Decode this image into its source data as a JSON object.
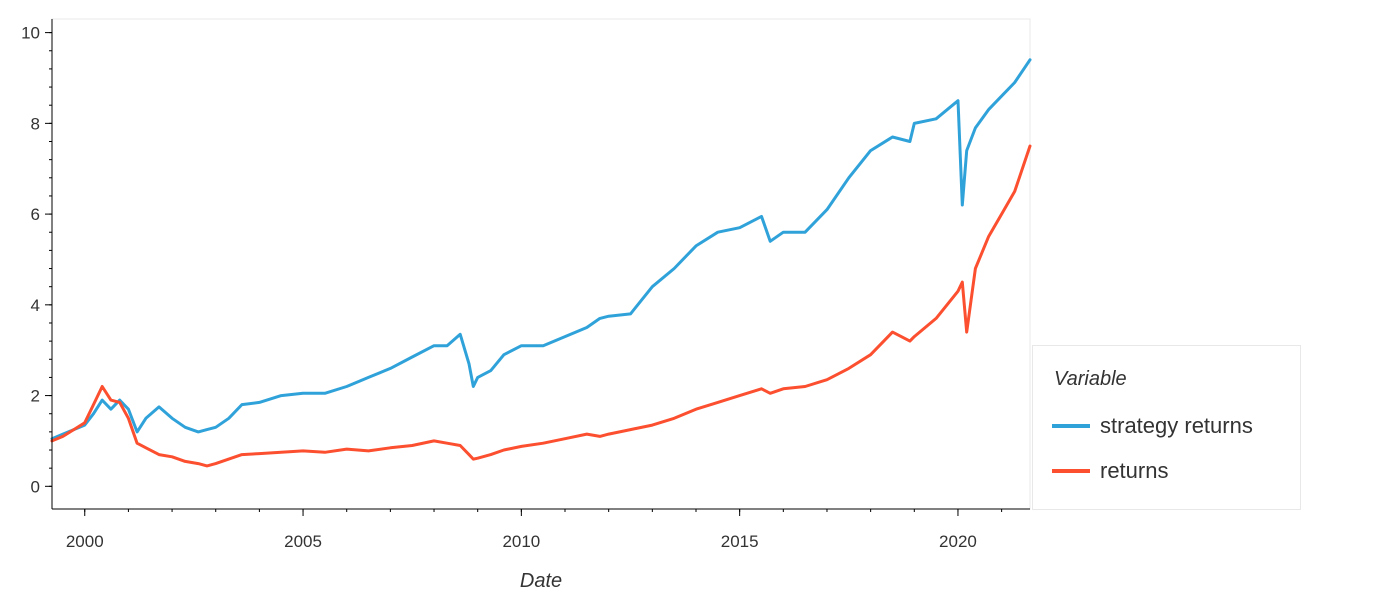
{
  "chart_data": {
    "type": "line",
    "title": "",
    "xlabel": "Date",
    "ylabel": "",
    "xlim": [
      1999.25,
      2021.65
    ],
    "ylim": [
      -0.5,
      10.3
    ],
    "x_ticks": [
      2000,
      2005,
      2010,
      2015,
      2020
    ],
    "y_ticks": [
      0,
      2,
      4,
      6,
      8,
      10
    ],
    "grid": false,
    "legend": {
      "title": "Variable",
      "placement": "right"
    },
    "x": [
      1999.25,
      1999.5,
      1999.75,
      2000.0,
      2000.2,
      2000.4,
      2000.6,
      2000.8,
      2001.0,
      2001.2,
      2001.4,
      2001.7,
      2002.0,
      2002.3,
      2002.6,
      2002.8,
      2003.0,
      2003.3,
      2003.6,
      2004.0,
      2004.5,
      2005.0,
      2005.5,
      2006.0,
      2006.5,
      2007.0,
      2007.5,
      2008.0,
      2008.3,
      2008.6,
      2008.8,
      2008.9,
      2009.0,
      2009.3,
      2009.6,
      2010.0,
      2010.5,
      2011.0,
      2011.5,
      2011.8,
      2012.0,
      2012.5,
      2013.0,
      2013.5,
      2014.0,
      2014.5,
      2015.0,
      2015.5,
      2015.7,
      2016.0,
      2016.5,
      2017.0,
      2017.5,
      2018.0,
      2018.5,
      2018.9,
      2019.0,
      2019.5,
      2020.0,
      2020.1,
      2020.2,
      2020.4,
      2020.7,
      2021.0,
      2021.3,
      2021.65
    ],
    "series": [
      {
        "name": "strategy returns",
        "color": "#30a2da",
        "values": [
          1.05,
          1.15,
          1.25,
          1.35,
          1.6,
          1.9,
          1.7,
          1.9,
          1.7,
          1.2,
          1.5,
          1.75,
          1.5,
          1.3,
          1.2,
          1.25,
          1.3,
          1.5,
          1.8,
          1.85,
          2.0,
          2.05,
          2.05,
          2.2,
          2.4,
          2.6,
          2.85,
          3.1,
          3.1,
          3.35,
          2.7,
          2.2,
          2.4,
          2.55,
          2.9,
          3.1,
          3.1,
          3.3,
          3.5,
          3.7,
          3.75,
          3.8,
          4.4,
          4.8,
          5.3,
          5.6,
          5.7,
          5.95,
          5.4,
          5.6,
          5.6,
          6.1,
          6.8,
          7.4,
          7.7,
          7.6,
          8.0,
          8.1,
          8.5,
          6.2,
          7.4,
          7.9,
          8.3,
          8.6,
          8.9,
          9.4
        ]
      },
      {
        "name": "returns",
        "color": "#fc4f30",
        "values": [
          1.0,
          1.1,
          1.25,
          1.4,
          1.8,
          2.2,
          1.9,
          1.85,
          1.5,
          0.95,
          0.85,
          0.7,
          0.65,
          0.55,
          0.5,
          0.45,
          0.5,
          0.6,
          0.7,
          0.72,
          0.75,
          0.78,
          0.75,
          0.82,
          0.78,
          0.85,
          0.9,
          1.0,
          0.95,
          0.9,
          0.7,
          0.6,
          0.62,
          0.7,
          0.8,
          0.88,
          0.95,
          1.05,
          1.15,
          1.1,
          1.15,
          1.25,
          1.35,
          1.5,
          1.7,
          1.85,
          2.0,
          2.15,
          2.05,
          2.15,
          2.2,
          2.35,
          2.6,
          2.9,
          3.4,
          3.2,
          3.3,
          3.7,
          4.3,
          4.5,
          3.4,
          4.8,
          5.5,
          6.0,
          6.5,
          7.5
        ]
      }
    ]
  }
}
